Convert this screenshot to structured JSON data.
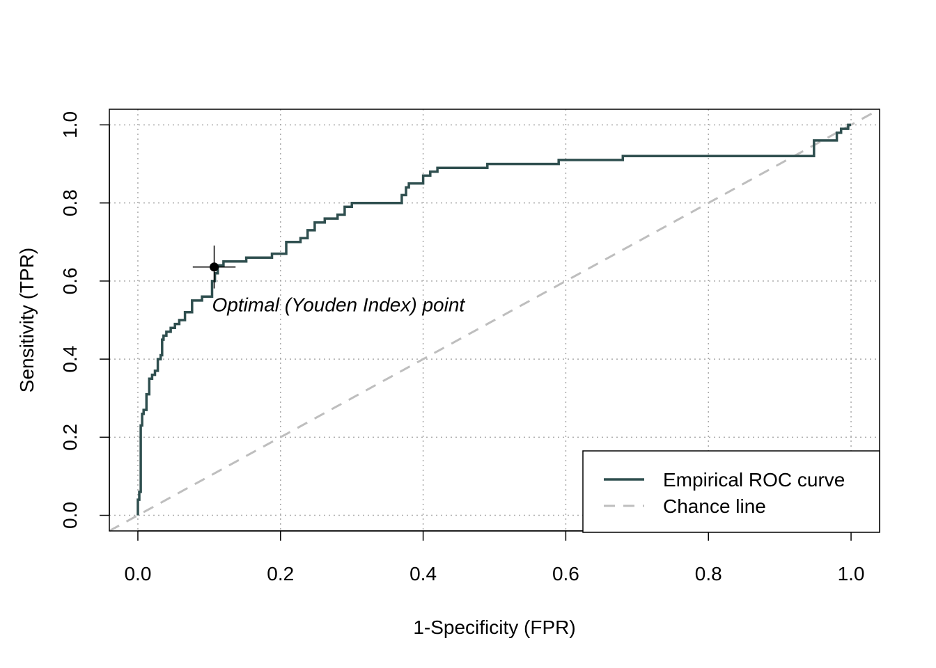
{
  "chart_data": {
    "type": "line",
    "title": "",
    "xlabel": "1-Specificity (FPR)",
    "ylabel": "Sensitivity (TPR)",
    "xlim": [
      -0.04,
      1.04
    ],
    "ylim": [
      -0.04,
      1.04
    ],
    "x_ticks": [
      0.0,
      0.2,
      0.4,
      0.6,
      0.8,
      1.0
    ],
    "y_ticks": [
      0.0,
      0.2,
      0.4,
      0.6,
      0.8,
      1.0
    ],
    "x_tick_labels": [
      "0.0",
      "0.2",
      "0.4",
      "0.6",
      "0.8",
      "1.0"
    ],
    "y_tick_labels": [
      "0.0",
      "0.2",
      "0.4",
      "0.6",
      "0.8",
      "1.0"
    ],
    "grid": true,
    "legend_position": "bottom-right",
    "colors": {
      "roc": "#2f4f4f",
      "chance": "#bebebe",
      "grid": "#a9a9a9",
      "point": "#000000"
    },
    "series": [
      {
        "name": "Empirical ROC curve",
        "style": "solid",
        "x": [
          0.0,
          0.0,
          0.002,
          0.002,
          0.004,
          0.004,
          0.006,
          0.006,
          0.008,
          0.008,
          0.012,
          0.012,
          0.016,
          0.016,
          0.02,
          0.02,
          0.024,
          0.024,
          0.028,
          0.028,
          0.032,
          0.032,
          0.034,
          0.034,
          0.036,
          0.036,
          0.04,
          0.04,
          0.046,
          0.046,
          0.052,
          0.052,
          0.058,
          0.058,
          0.066,
          0.066,
          0.076,
          0.076,
          0.09,
          0.09,
          0.104,
          0.104,
          0.108,
          0.108,
          0.112,
          0.112,
          0.12,
          0.12,
          0.152,
          0.152,
          0.188,
          0.188,
          0.208,
          0.208,
          0.228,
          0.228,
          0.238,
          0.238,
          0.248,
          0.248,
          0.262,
          0.262,
          0.28,
          0.28,
          0.29,
          0.29,
          0.3,
          0.3,
          0.37,
          0.37,
          0.376,
          0.376,
          0.38,
          0.38,
          0.4,
          0.4,
          0.41,
          0.41,
          0.42,
          0.42,
          0.49,
          0.49,
          0.59,
          0.59,
          0.68,
          0.68,
          0.948,
          0.948,
          0.98,
          0.98,
          0.986,
          0.986,
          0.996,
          0.996,
          1.0
        ],
        "y": [
          0.0,
          0.04,
          0.04,
          0.06,
          0.06,
          0.23,
          0.23,
          0.26,
          0.26,
          0.27,
          0.27,
          0.31,
          0.31,
          0.35,
          0.35,
          0.36,
          0.36,
          0.37,
          0.37,
          0.4,
          0.4,
          0.41,
          0.41,
          0.45,
          0.45,
          0.46,
          0.46,
          0.47,
          0.47,
          0.48,
          0.48,
          0.49,
          0.49,
          0.5,
          0.5,
          0.52,
          0.52,
          0.55,
          0.55,
          0.56,
          0.56,
          0.6,
          0.6,
          0.62,
          0.62,
          0.64,
          0.64,
          0.65,
          0.65,
          0.66,
          0.66,
          0.67,
          0.67,
          0.7,
          0.7,
          0.71,
          0.71,
          0.73,
          0.73,
          0.75,
          0.75,
          0.76,
          0.76,
          0.77,
          0.77,
          0.79,
          0.79,
          0.8,
          0.8,
          0.82,
          0.82,
          0.84,
          0.84,
          0.85,
          0.85,
          0.87,
          0.87,
          0.88,
          0.88,
          0.89,
          0.89,
          0.9,
          0.9,
          0.91,
          0.91,
          0.92,
          0.92,
          0.96,
          0.96,
          0.98,
          0.98,
          0.99,
          0.99,
          1.0,
          1.0
        ]
      },
      {
        "name": "Chance line",
        "style": "dashed",
        "x": [
          -0.04,
          1.04
        ],
        "y": [
          -0.04,
          1.04
        ]
      }
    ],
    "optimal_point": {
      "x": 0.107,
      "y": 0.636,
      "x_err": 0.03,
      "y_err": 0.055
    },
    "annotation": "Optimal (Youden Index) point",
    "legend": [
      "Empirical ROC curve",
      "Chance line"
    ]
  }
}
